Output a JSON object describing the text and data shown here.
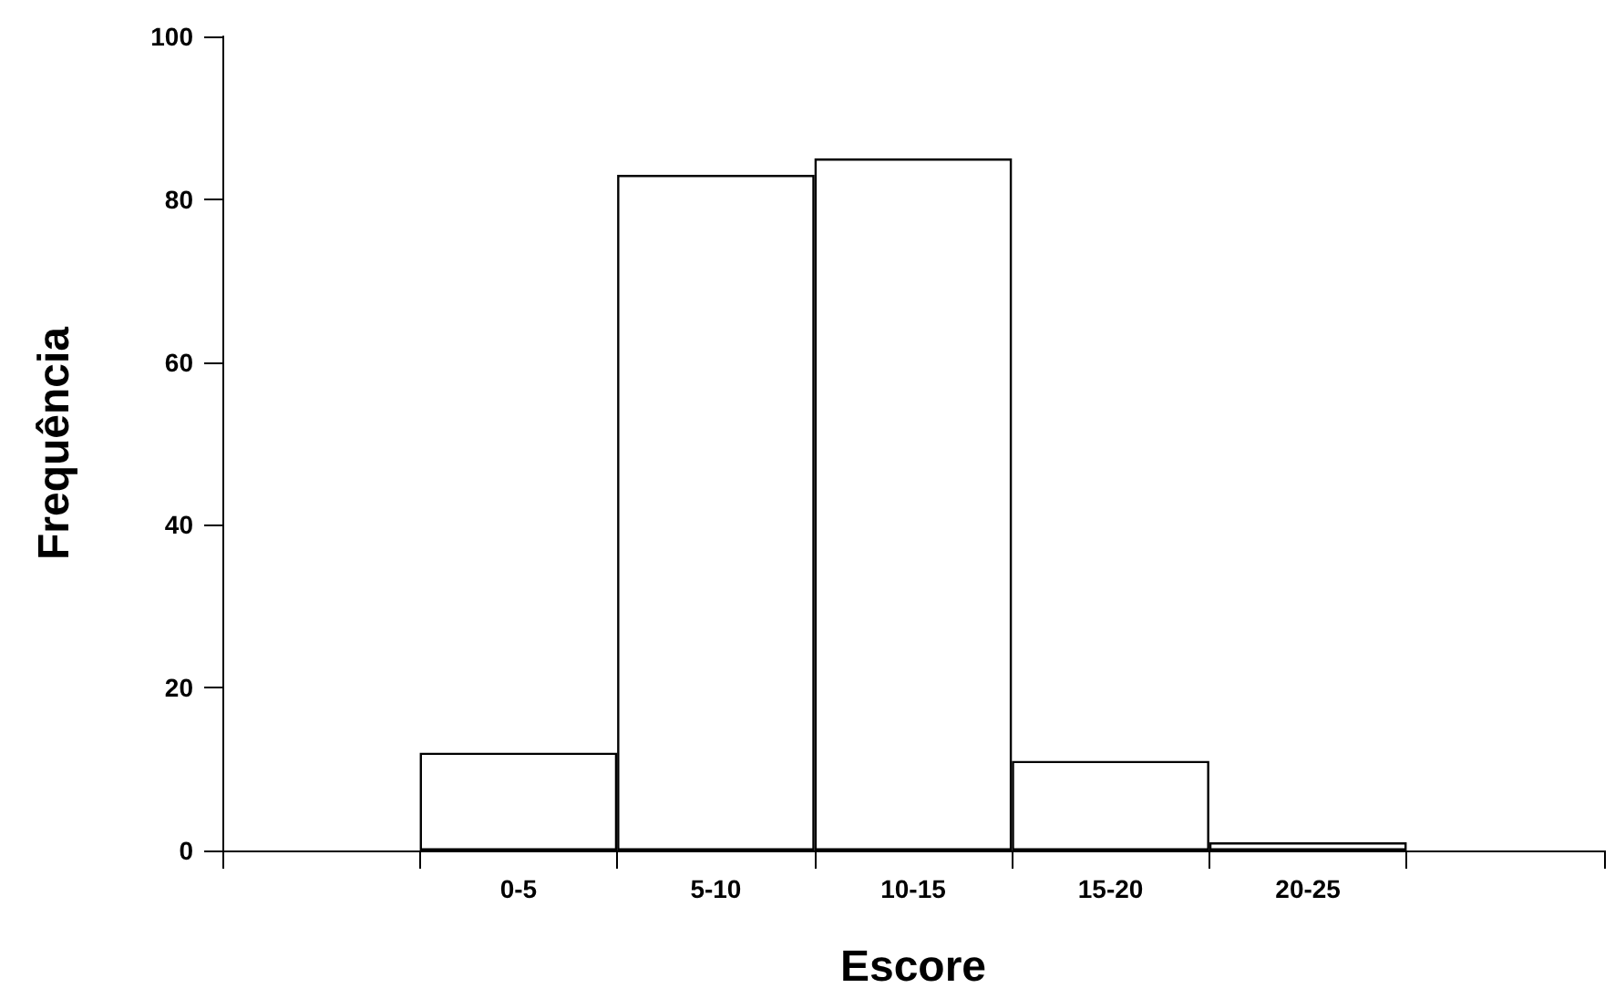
{
  "chart_data": {
    "type": "bar",
    "xlabel": "Escore",
    "ylabel": "Frequência",
    "categories": [
      null,
      "0-5",
      "5-10",
      "10-15",
      "15-20",
      "20-25",
      null
    ],
    "values": [
      null,
      12,
      83,
      85,
      11,
      1,
      null
    ],
    "color": "#ffffff",
    "ylim": [
      0,
      100
    ],
    "yticks": [
      0,
      20,
      40,
      60,
      80,
      100
    ],
    "grid": false
  }
}
